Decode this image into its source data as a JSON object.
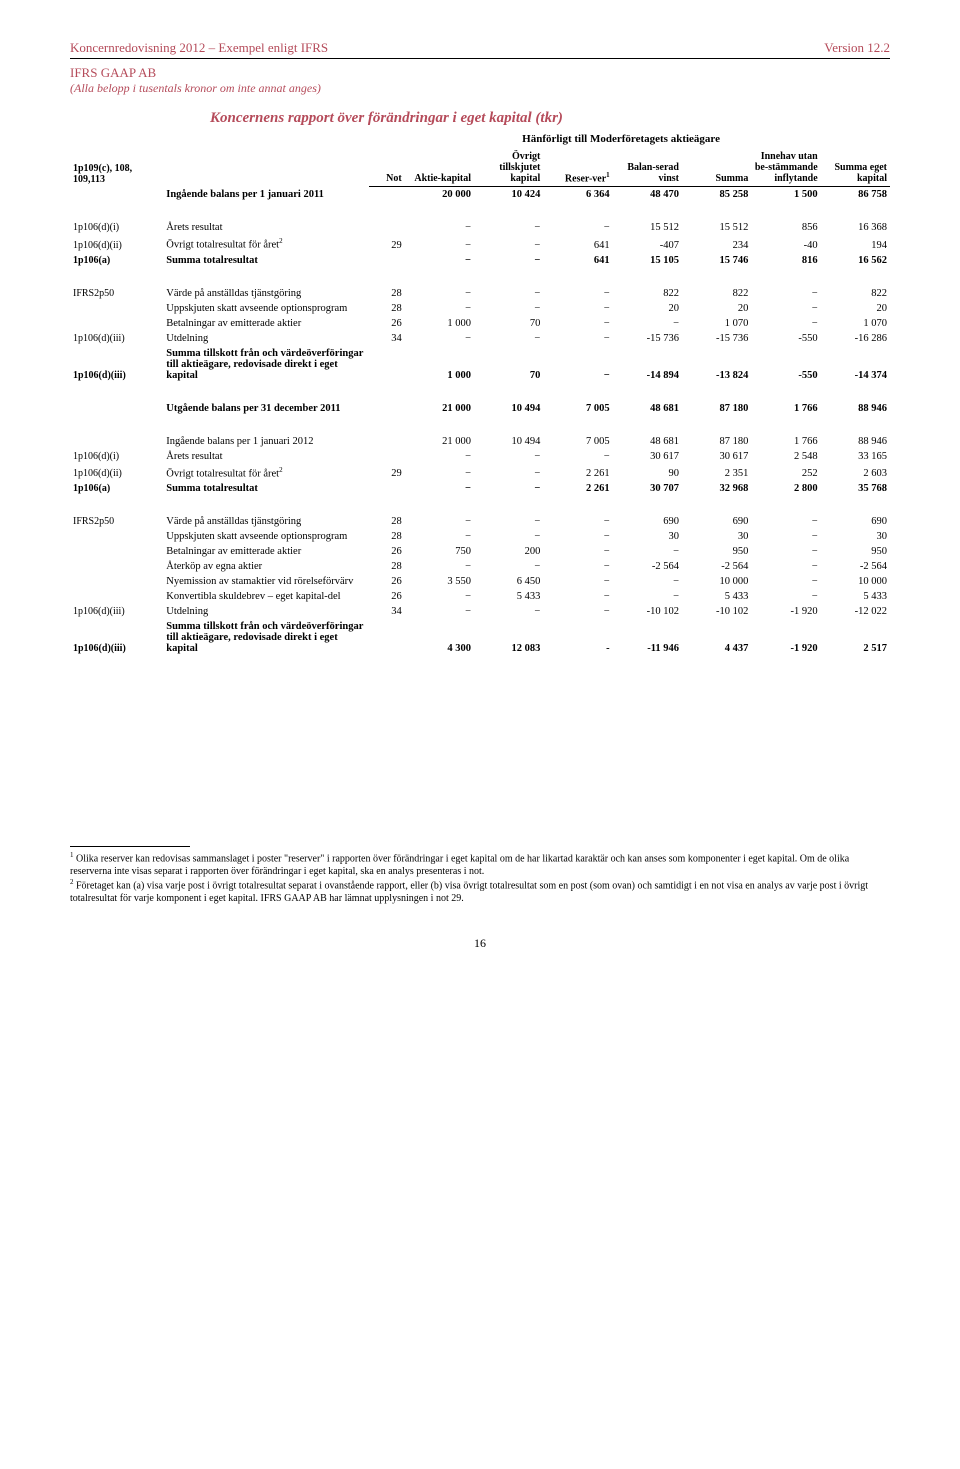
{
  "header": {
    "left": "Koncernredovisning 2012 – Exempel enligt IFRS",
    "right": "Version 12.2",
    "company": "IFRS GAAP AB",
    "note": "(Alla belopp i tusentals kronor om inte annat anges)"
  },
  "title": "Koncernens rapport över förändringar i eget kapital (tkr)",
  "subhead": "Hänförligt till Moderföretagets aktieägare",
  "leftref": "1p109(c), 108, 109,113",
  "columns": [
    "Not",
    "Aktie-kapital",
    "Övrigt tillskjutet kapital",
    "Reser-ver",
    "Balan-serad vinst",
    "Summa",
    "Innehav utan be-stämmande inflytande",
    "Summa eget kapital"
  ],
  "col_reserv_sup": "1",
  "rows": [
    {
      "ref": "",
      "label": "Ingående balans per 1 januari 2011",
      "bold": true,
      "vals": [
        "",
        "20 000",
        "10 424",
        "6 364",
        "48 470",
        "85 258",
        "1 500",
        "86 758"
      ]
    },
    {
      "spacer": true
    },
    {
      "ref": "1p106(d)(i)",
      "label": "Årets resultat",
      "vals": [
        "",
        "−",
        "−",
        "−",
        "15 512",
        "15 512",
        "856",
        "16 368"
      ]
    },
    {
      "ref": "1p106(d)(ii)",
      "label": "Övrigt totalresultat för året",
      "sup": "2",
      "vals": [
        "29",
        "−",
        "−",
        "641",
        "-407",
        "234",
        "-40",
        "194"
      ]
    },
    {
      "ref": "1p106(a)",
      "label": "Summa totalresultat",
      "bold": true,
      "vals": [
        "",
        "−",
        "−",
        "641",
        "15 105",
        "15 746",
        "816",
        "16 562"
      ]
    },
    {
      "spacer": true
    },
    {
      "ref": "IFRS2p50",
      "label": "Värde på anställdas tjänstgöring",
      "vals": [
        "28",
        "−",
        "−",
        "−",
        "822",
        "822",
        "−",
        "822"
      ]
    },
    {
      "ref": "",
      "label": "Uppskjuten skatt avseende optionsprogram",
      "vals": [
        "28",
        "−",
        "−",
        "−",
        "20",
        "20",
        "−",
        "20"
      ]
    },
    {
      "ref": "",
      "label": "Betalningar av emitterade aktier",
      "vals": [
        "26",
        "1 000",
        "70",
        "−",
        "−",
        "1 070",
        "−",
        "1 070"
      ]
    },
    {
      "ref": "1p106(d)(iii)",
      "label": "Utdelning",
      "vals": [
        "34",
        "−",
        "−",
        "−",
        "-15 736",
        "-15 736",
        "-550",
        "-16 286"
      ]
    },
    {
      "ref": "1p106(d)(iii)",
      "label": "Summa tillskott från och värdeöverföringar till aktieägare, redovisade direkt i eget kapital",
      "bold": true,
      "vals": [
        "",
        "1 000",
        "70",
        "−",
        "-14 894",
        "-13 824",
        "-550",
        "-14 374"
      ]
    },
    {
      "spacer": true
    },
    {
      "ref": "",
      "label": "Utgående balans per 31 december 2011",
      "bold": true,
      "vals": [
        "",
        "21 000",
        "10 494",
        "7 005",
        "48 681",
        "87 180",
        "1 766",
        "88 946"
      ]
    },
    {
      "spacer": true
    },
    {
      "ref": "",
      "label": "Ingående balans per 1 januari 2012",
      "vals": [
        "",
        "21 000",
        "10 494",
        "7 005",
        "48 681",
        "87 180",
        "1 766",
        "88 946"
      ]
    },
    {
      "ref": "1p106(d)(i)",
      "label": "Årets resultat",
      "vals": [
        "",
        "−",
        "−",
        "−",
        "30 617",
        "30 617",
        "2 548",
        "33 165"
      ]
    },
    {
      "ref": "1p106(d)(ii)",
      "label": "Övrigt totalresultat för året",
      "sup": "2",
      "vals": [
        "29",
        "−",
        "−",
        "2 261",
        "90",
        "2 351",
        "252",
        "2 603"
      ]
    },
    {
      "ref": "1p106(a)",
      "label": "Summa totalresultat",
      "bold": true,
      "vals": [
        "",
        "−",
        "−",
        "2 261",
        "30 707",
        "32 968",
        "2 800",
        "35 768"
      ]
    },
    {
      "spacer": true
    },
    {
      "ref": "IFRS2p50",
      "label": "Värde på anställdas tjänstgöring",
      "vals": [
        "28",
        "−",
        "−",
        "−",
        "690",
        "690",
        "−",
        "690"
      ]
    },
    {
      "ref": "",
      "label": "Uppskjuten skatt avseende optionsprogram",
      "vals": [
        "28",
        "−",
        "−",
        "−",
        "30",
        "30",
        "−",
        "30"
      ]
    },
    {
      "ref": "",
      "label": "Betalningar av emitterade aktier",
      "vals": [
        "26",
        "750",
        "200",
        "−",
        "−",
        "950",
        "−",
        "950"
      ]
    },
    {
      "ref": "",
      "label": "Återköp av egna aktier",
      "vals": [
        "28",
        "−",
        "−",
        "−",
        "-2 564",
        "-2 564",
        "−",
        "-2 564"
      ]
    },
    {
      "ref": "",
      "label": "Nyemission av stamaktier vid rörelseförvärv",
      "vals": [
        "26",
        "3 550",
        "6 450",
        "−",
        "−",
        "10 000",
        "−",
        "10 000"
      ]
    },
    {
      "ref": "",
      "label": "Konvertibla skuldebrev – eget kapital-del",
      "vals": [
        "26",
        "−",
        "5 433",
        "−",
        "−",
        "5 433",
        "−",
        "5 433"
      ]
    },
    {
      "ref": "1p106(d)(iii)",
      "label": "Utdelning",
      "vals": [
        "34",
        "−",
        "−",
        "−",
        "-10 102",
        "-10 102",
        "-1 920",
        "-12 022"
      ]
    },
    {
      "ref": "1p106(d)(iii)",
      "label": "Summa tillskott från och värdeöverföringar till aktieägare, redovisade direkt i eget kapital",
      "bold": true,
      "vals": [
        "",
        "4 300",
        "12 083",
        "-",
        "-11 946",
        "4 437",
        "-1 920",
        "2 517"
      ]
    }
  ],
  "footnotes": [
    "Olika reserver kan redovisas sammanslaget i poster \"reserver\" i rapporten över förändringar i eget kapital om de har likartad karaktär och kan anses som komponenter i eget kapital. Om de olika reserverna inte visas separat i rapporten över förändringar i eget kapital, ska en analys presenteras i not.",
    "Företaget kan (a) visa varje post i övrigt totalresultat separat i ovanstående rapport, eller (b) visa övrigt totalresultat som en post (som ovan) och samtidigt i en not visa en analys av varje post i övrigt totalresultat för varje komponent i eget kapital. IFRS GAAP AB har lämnat upplysningen i not 29."
  ],
  "pagenum": "16"
}
